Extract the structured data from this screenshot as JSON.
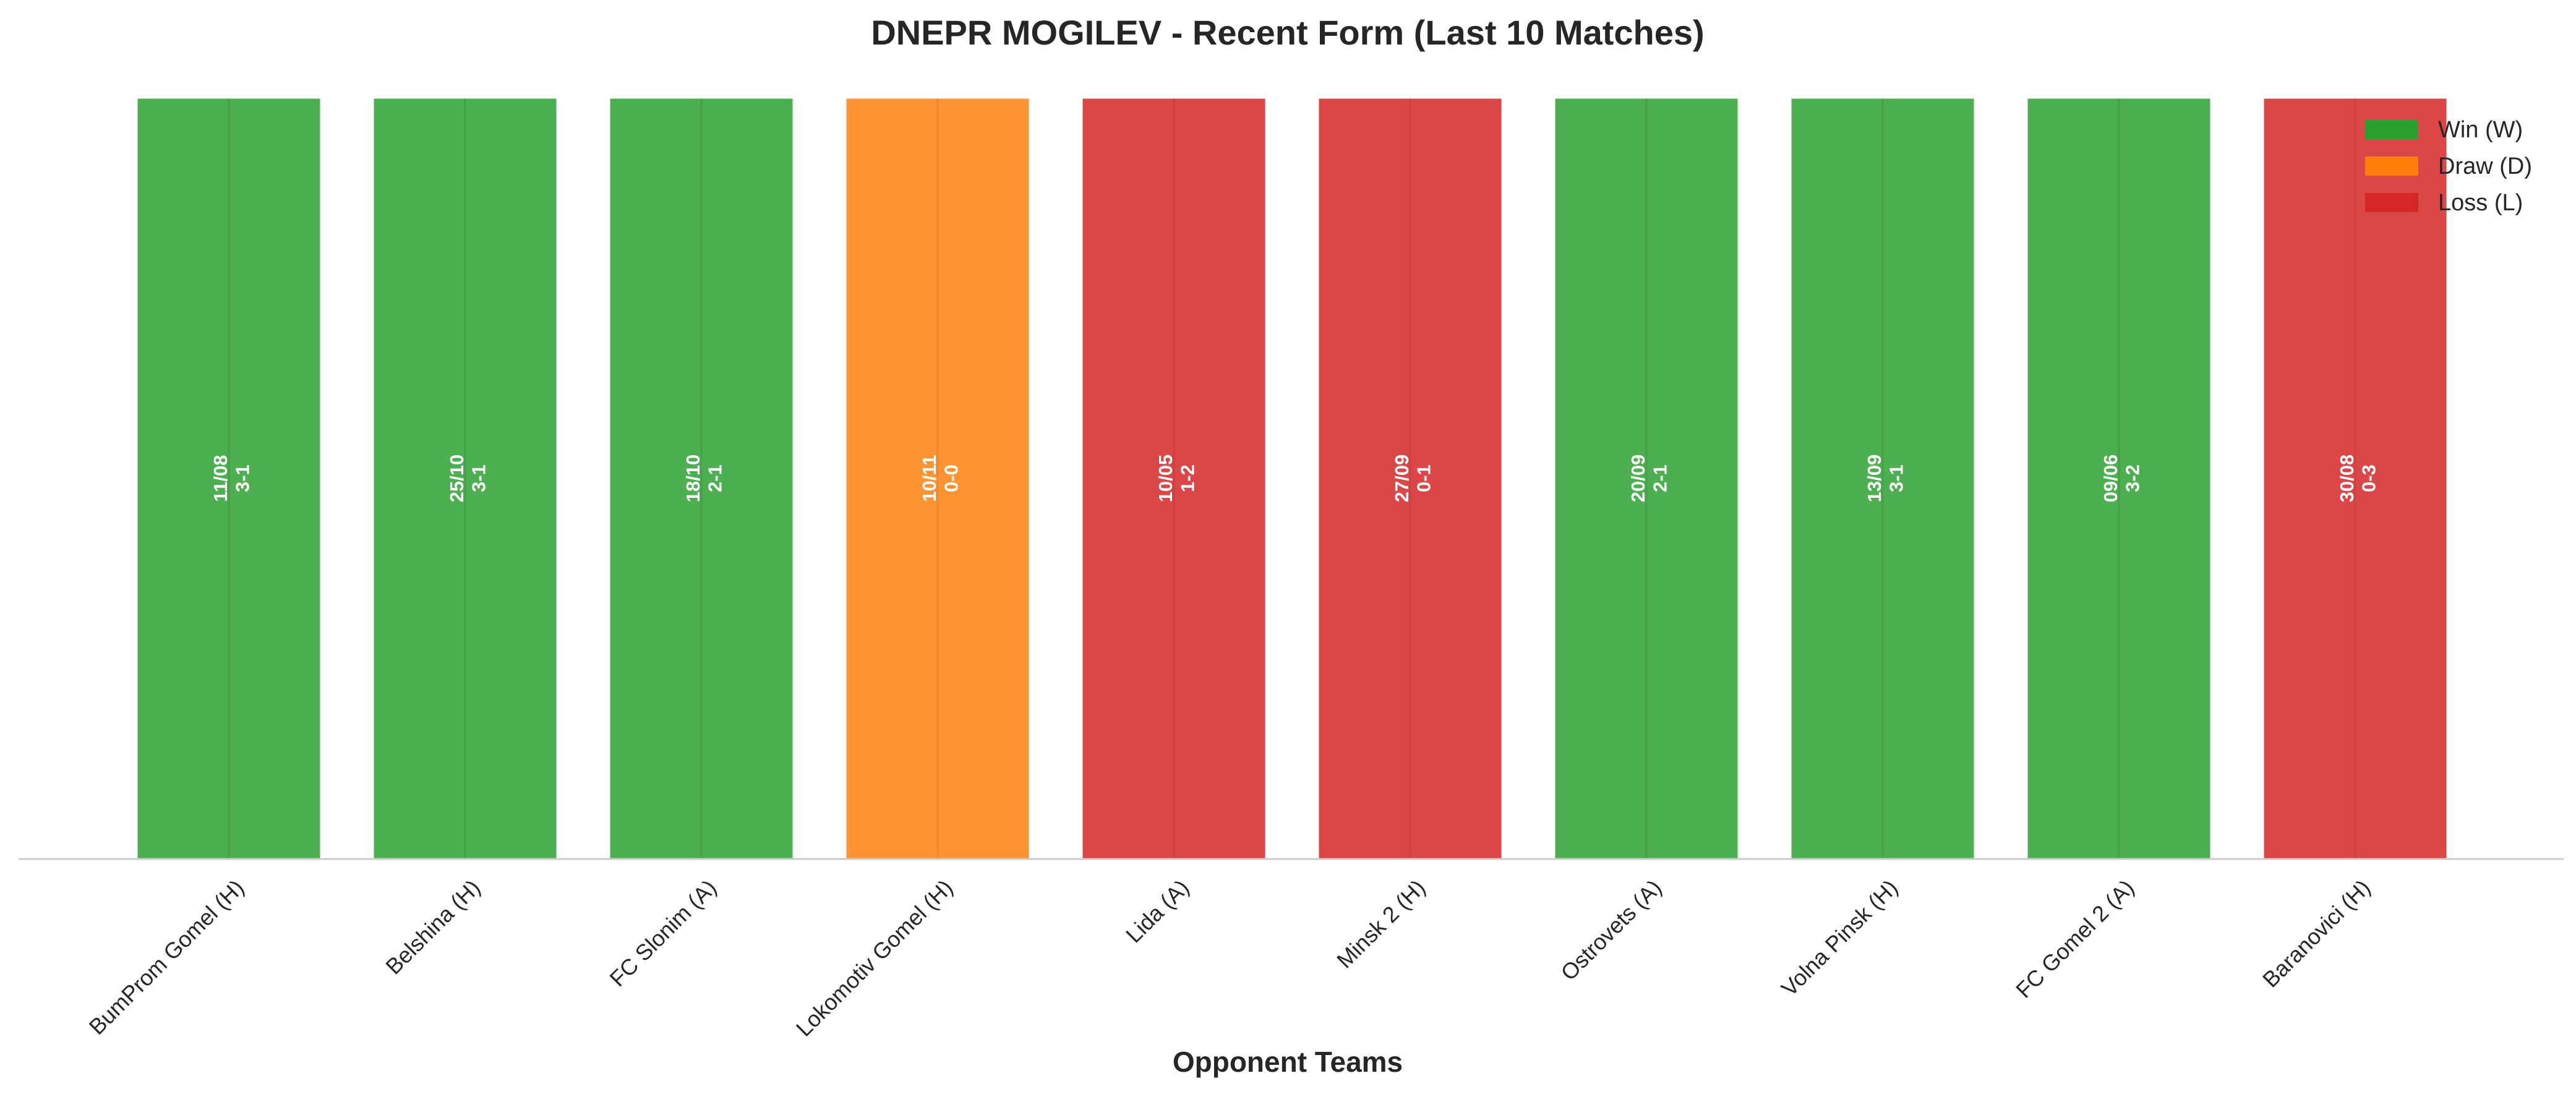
{
  "chart_data": {
    "type": "bar",
    "title": "DNEPR MOGILEV - Recent Form (Last 10 Matches)",
    "xlabel": "Opponent Teams",
    "ylabel": "",
    "ylim": [
      0,
      1
    ],
    "grid": false,
    "legend_position": "top-right",
    "categories": [
      "BumProm Gomel (H)",
      "Belshina (H)",
      "FC Slonim (A)",
      "Lokomotiv Gomel (H)",
      "Lida (A)",
      "Minsk 2 (H)",
      "Ostrovets (A)",
      "Volna Pinsk (H)",
      "FC Gomel 2 (A)",
      "Baranovici (H)"
    ],
    "values": [
      1,
      1,
      1,
      1,
      1,
      1,
      1,
      1,
      1,
      1
    ],
    "dates": [
      "11/08",
      "25/10",
      "18/10",
      "10/11",
      "10/05",
      "27/09",
      "20/09",
      "13/09",
      "09/06",
      "30/08"
    ],
    "scores": [
      "3-1",
      "3-1",
      "2-1",
      "0-0",
      "1-2",
      "0-1",
      "2-1",
      "3-1",
      "3-2",
      "0-3"
    ],
    "results": [
      "W",
      "W",
      "W",
      "D",
      "L",
      "L",
      "W",
      "W",
      "W",
      "L"
    ],
    "colors": {
      "W": "#4caf50",
      "D": "#ff9433",
      "L": "#dc4646",
      "W_legend": "#2ca02c",
      "D_legend": "#ff7f0e",
      "L_legend": "#d62728"
    },
    "legend": [
      {
        "key": "W",
        "label": "Win (W)"
      },
      {
        "key": "D",
        "label": "Draw (D)"
      },
      {
        "key": "L",
        "label": "Loss (L)"
      }
    ]
  }
}
